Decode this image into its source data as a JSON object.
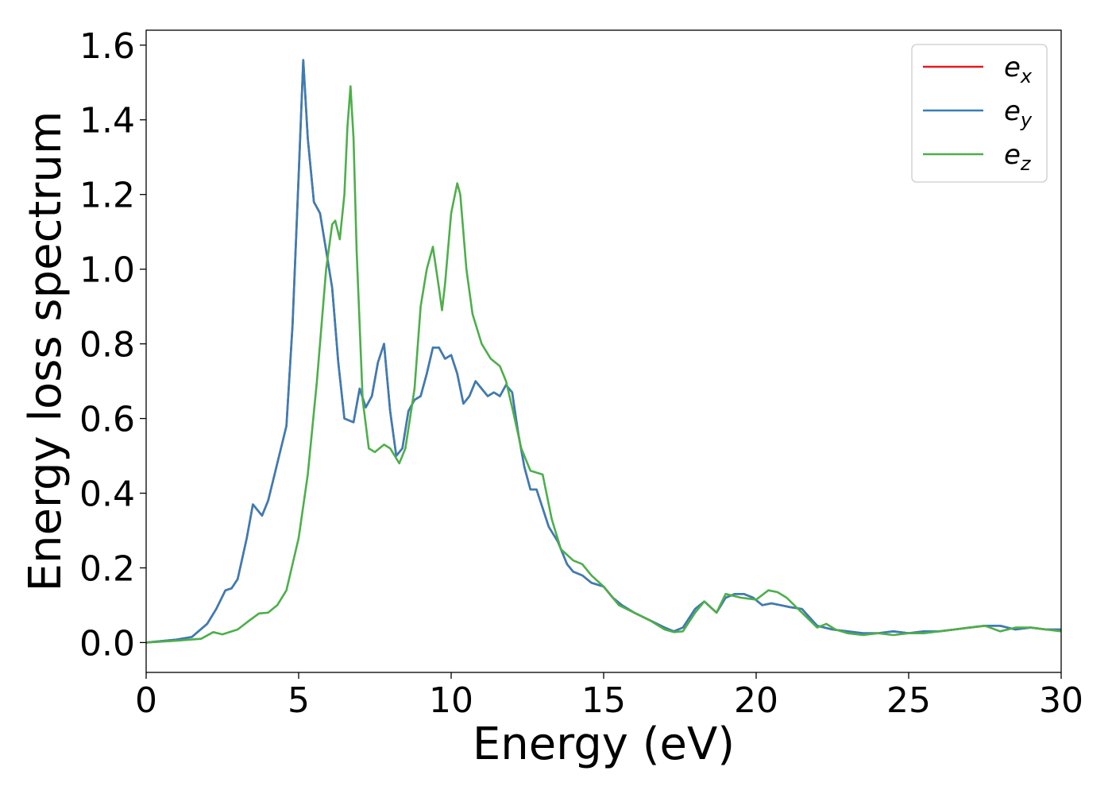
{
  "chart_data": {
    "type": "line",
    "title": "",
    "xlabel": "Energy (eV)",
    "ylabel": "Energy loss spectrum",
    "xlim": [
      0,
      30
    ],
    "ylim": [
      -0.08,
      1.64
    ],
    "xticks": [
      0,
      5,
      10,
      15,
      20,
      25,
      30
    ],
    "xtick_labels": [
      "0",
      "5",
      "10",
      "15",
      "20",
      "25",
      "30"
    ],
    "yticks": [
      0.0,
      0.2,
      0.4,
      0.6,
      0.8,
      1.0,
      1.2,
      1.4,
      1.6
    ],
    "ytick_labels": [
      "0.0",
      "0.2",
      "0.4",
      "0.6",
      "0.8",
      "1.0",
      "1.2",
      "1.4",
      "1.6"
    ],
    "grid": false,
    "legend_position": "top-right",
    "series": [
      {
        "name": "e_x",
        "legend_base": "e",
        "legend_sub": "x",
        "color": "#e41a1c",
        "x": [
          0,
          1,
          1.5,
          2,
          2.3,
          2.6,
          2.8,
          3.0,
          3.3,
          3.5,
          3.6,
          3.8,
          4.0,
          4.3,
          4.6,
          4.8,
          5.0,
          5.15,
          5.3,
          5.5,
          5.7,
          5.9,
          6.1,
          6.3,
          6.5,
          6.8,
          7.0,
          7.2,
          7.4,
          7.6,
          7.8,
          8.0,
          8.2,
          8.4,
          8.6,
          8.8,
          9.0,
          9.2,
          9.4,
          9.6,
          9.8,
          10.0,
          10.2,
          10.4,
          10.6,
          10.8,
          11.0,
          11.2,
          11.4,
          11.6,
          11.8,
          12.0,
          12.2,
          12.4,
          12.6,
          12.8,
          13.0,
          13.2,
          13.5,
          13.8,
          14.0,
          14.3,
          14.6,
          15.0,
          15.3,
          15.6,
          16.0,
          16.5,
          17.0,
          17.3,
          17.6,
          18.0,
          18.3,
          18.7,
          19.0,
          19.3,
          19.6,
          19.9,
          20.2,
          20.5,
          20.8,
          21.1,
          21.5,
          22.0,
          22.5,
          23.0,
          23.5,
          24.0,
          24.5,
          25.0,
          25.5,
          26.0,
          26.5,
          27.0,
          27.5,
          28.0,
          28.5,
          29.0,
          29.5,
          30.0
        ],
        "y": [
          0.0,
          0.008,
          0.015,
          0.05,
          0.09,
          0.14,
          0.145,
          0.17,
          0.28,
          0.37,
          0.36,
          0.34,
          0.38,
          0.48,
          0.58,
          0.85,
          1.25,
          1.56,
          1.35,
          1.18,
          1.15,
          1.05,
          0.95,
          0.75,
          0.6,
          0.59,
          0.68,
          0.63,
          0.66,
          0.75,
          0.8,
          0.62,
          0.5,
          0.52,
          0.62,
          0.65,
          0.66,
          0.72,
          0.79,
          0.79,
          0.76,
          0.77,
          0.72,
          0.64,
          0.66,
          0.7,
          0.68,
          0.66,
          0.67,
          0.66,
          0.69,
          0.67,
          0.56,
          0.47,
          0.41,
          0.41,
          0.36,
          0.31,
          0.27,
          0.21,
          0.19,
          0.18,
          0.16,
          0.15,
          0.12,
          0.1,
          0.08,
          0.06,
          0.04,
          0.03,
          0.04,
          0.09,
          0.11,
          0.08,
          0.12,
          0.13,
          0.13,
          0.12,
          0.1,
          0.105,
          0.1,
          0.095,
          0.09,
          0.045,
          0.035,
          0.03,
          0.025,
          0.025,
          0.03,
          0.025,
          0.03,
          0.03,
          0.035,
          0.04,
          0.045,
          0.045,
          0.035,
          0.04,
          0.035,
          0.035
        ]
      },
      {
        "name": "e_y",
        "legend_base": "e",
        "legend_sub": "y",
        "color": "#377eb8",
        "x": [
          0,
          1,
          1.5,
          2,
          2.3,
          2.6,
          2.8,
          3.0,
          3.3,
          3.5,
          3.6,
          3.8,
          4.0,
          4.3,
          4.6,
          4.8,
          5.0,
          5.15,
          5.3,
          5.5,
          5.7,
          5.9,
          6.1,
          6.3,
          6.5,
          6.8,
          7.0,
          7.2,
          7.4,
          7.6,
          7.8,
          8.0,
          8.2,
          8.4,
          8.6,
          8.8,
          9.0,
          9.2,
          9.4,
          9.6,
          9.8,
          10.0,
          10.2,
          10.4,
          10.6,
          10.8,
          11.0,
          11.2,
          11.4,
          11.6,
          11.8,
          12.0,
          12.2,
          12.4,
          12.6,
          12.8,
          13.0,
          13.2,
          13.5,
          13.8,
          14.0,
          14.3,
          14.6,
          15.0,
          15.3,
          15.6,
          16.0,
          16.5,
          17.0,
          17.3,
          17.6,
          18.0,
          18.3,
          18.7,
          19.0,
          19.3,
          19.6,
          19.9,
          20.2,
          20.5,
          20.8,
          21.1,
          21.5,
          22.0,
          22.5,
          23.0,
          23.5,
          24.0,
          24.5,
          25.0,
          25.5,
          26.0,
          26.5,
          27.0,
          27.5,
          28.0,
          28.5,
          29.0,
          29.5,
          30.0
        ],
        "y": [
          0.0,
          0.008,
          0.015,
          0.05,
          0.09,
          0.14,
          0.145,
          0.17,
          0.28,
          0.37,
          0.36,
          0.34,
          0.38,
          0.48,
          0.58,
          0.85,
          1.25,
          1.56,
          1.35,
          1.18,
          1.15,
          1.05,
          0.95,
          0.75,
          0.6,
          0.59,
          0.68,
          0.63,
          0.66,
          0.75,
          0.8,
          0.62,
          0.5,
          0.52,
          0.62,
          0.65,
          0.66,
          0.72,
          0.79,
          0.79,
          0.76,
          0.77,
          0.72,
          0.64,
          0.66,
          0.7,
          0.68,
          0.66,
          0.67,
          0.66,
          0.69,
          0.67,
          0.56,
          0.47,
          0.41,
          0.41,
          0.36,
          0.31,
          0.27,
          0.21,
          0.19,
          0.18,
          0.16,
          0.15,
          0.12,
          0.1,
          0.08,
          0.06,
          0.04,
          0.03,
          0.04,
          0.09,
          0.11,
          0.08,
          0.12,
          0.13,
          0.13,
          0.12,
          0.1,
          0.105,
          0.1,
          0.095,
          0.09,
          0.045,
          0.035,
          0.03,
          0.025,
          0.025,
          0.03,
          0.025,
          0.03,
          0.03,
          0.035,
          0.04,
          0.045,
          0.045,
          0.035,
          0.04,
          0.035,
          0.035
        ]
      },
      {
        "name": "e_z",
        "legend_base": "e",
        "legend_sub": "z",
        "color": "#4daf4a",
        "x": [
          0,
          1,
          1.8,
          2.2,
          2.5,
          3.0,
          3.4,
          3.7,
          4.0,
          4.3,
          4.6,
          5.0,
          5.3,
          5.6,
          5.9,
          6.1,
          6.2,
          6.35,
          6.5,
          6.6,
          6.7,
          6.8,
          6.9,
          7.1,
          7.3,
          7.5,
          7.8,
          8.0,
          8.3,
          8.5,
          8.8,
          9.0,
          9.2,
          9.4,
          9.6,
          9.7,
          9.8,
          10.0,
          10.2,
          10.3,
          10.5,
          10.7,
          11.0,
          11.3,
          11.6,
          11.8,
          12.0,
          12.3,
          12.6,
          13.0,
          13.3,
          13.6,
          14.0,
          14.3,
          14.6,
          15.0,
          15.5,
          16.0,
          16.5,
          17.0,
          17.3,
          17.6,
          18.0,
          18.3,
          18.7,
          19.0,
          19.5,
          20.0,
          20.4,
          20.7,
          21.0,
          21.5,
          22.0,
          22.3,
          22.6,
          23.0,
          23.5,
          24.0,
          24.5,
          25.0,
          25.5,
          26.0,
          26.5,
          27.0,
          27.5,
          28.0,
          28.5,
          29.0,
          29.5,
          30.0
        ],
        "y": [
          0.0,
          0.005,
          0.01,
          0.028,
          0.022,
          0.035,
          0.06,
          0.078,
          0.08,
          0.1,
          0.14,
          0.28,
          0.45,
          0.7,
          1.0,
          1.12,
          1.13,
          1.08,
          1.2,
          1.38,
          1.49,
          1.35,
          1.05,
          0.65,
          0.52,
          0.51,
          0.53,
          0.52,
          0.48,
          0.52,
          0.68,
          0.9,
          1.0,
          1.06,
          0.95,
          0.89,
          0.96,
          1.15,
          1.23,
          1.2,
          1.0,
          0.88,
          0.8,
          0.76,
          0.74,
          0.7,
          0.63,
          0.52,
          0.46,
          0.45,
          0.33,
          0.25,
          0.22,
          0.21,
          0.18,
          0.15,
          0.1,
          0.08,
          0.06,
          0.035,
          0.028,
          0.03,
          0.08,
          0.11,
          0.08,
          0.13,
          0.12,
          0.115,
          0.14,
          0.135,
          0.12,
          0.08,
          0.04,
          0.05,
          0.035,
          0.025,
          0.02,
          0.025,
          0.02,
          0.025,
          0.025,
          0.03,
          0.035,
          0.04,
          0.045,
          0.03,
          0.04,
          0.04,
          0.035,
          0.03
        ]
      }
    ]
  }
}
